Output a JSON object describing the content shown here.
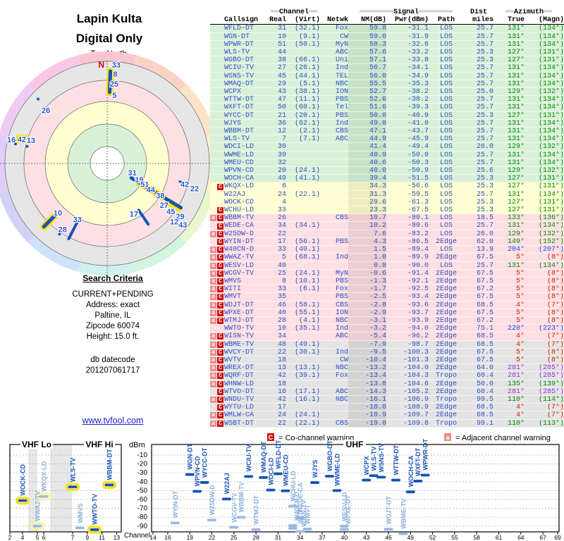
{
  "header": {
    "title_line1": "Lapin Kulta",
    "title_line2": "Digital Only",
    "north_label": "TrueNorth",
    "north_letter": "N"
  },
  "search_criteria": {
    "title": "Search Criteria",
    "lines": [
      "CURRENT+PENDING",
      "Address: exact",
      "Paltine, IL",
      "Zipcode 60074",
      "Height: 15.0 ft."
    ],
    "db_label": "db datecode",
    "db_value": "201207061717"
  },
  "link_text": "www.tvfool.com",
  "legend": {
    "co_letter": "C",
    "co_text": "= Co-channel warning",
    "adj_letter": "a",
    "adj_text": "= Adjacent channel warning"
  },
  "colors": {
    "table_text": "#2f4fc6",
    "marker_dark": "#1353b8",
    "marker_light": "#9cb9e4",
    "label_dark": "#1a52b8",
    "label_light": "#8aaede",
    "ring_yellow": "#ffe100",
    "co_badge": "#cc1111",
    "adj_badge": "#f08a8a",
    "band_green": "#d9f1d9",
    "band_yellow": "#ffffd2",
    "band_pink": "#fedfe3",
    "band_gray": "#e4e4e4",
    "az_green": "#008800",
    "az_red": "#cc2200",
    "az_purple": "#9933cc",
    "az_blue": "#2244dd"
  },
  "table": {
    "header1": {
      "channel": "Channel",
      "signal": "Signal",
      "dist": "Dist",
      "azimuth": "Azimuth",
      "eq2": "══",
      "eq8": "════════"
    },
    "header2": {
      "callsign": "Callsign",
      "real": "Real",
      "virt": "(Virt)",
      "netwk": "Netwk",
      "nm": "NM(dB)",
      "pwr": "Pwr(dBm)",
      "path": "Path",
      "miles": "miles",
      "true": "True",
      "magn": "(Magn)"
    },
    "rows": [
      [
        "WFLD-DT",
        "31",
        "(32.1)",
        "Fox",
        "59.8",
        "-31.1",
        "LOS",
        "25.7",
        "131°",
        "(134°)",
        "",
        "g",
        "g",
        0
      ],
      [
        "WGN-DT",
        "19",
        "(9.1)",
        "CW",
        "59.0",
        "-31.9",
        "LOS",
        "25.7",
        "131°",
        "(134°)",
        "",
        "g",
        "g",
        0
      ],
      [
        "WPWR-DT",
        "51",
        "(50.1)",
        "MyN",
        "58.3",
        "-32.6",
        "LOS",
        "25.7",
        "131°",
        "(134°)",
        "",
        "g",
        "g",
        0
      ],
      [
        "WLS-TV",
        "44",
        "",
        "ABC",
        "57.6",
        "-33.2",
        "LOS",
        "25.3",
        "127°",
        "(131°)",
        "",
        "g",
        "g",
        0
      ],
      [
        "WGBO-DT",
        "38",
        "(66.1)",
        "Uni",
        "57.1",
        "-33.8",
        "LOS",
        "25.3",
        "127°",
        "(131°)",
        "",
        "g",
        "g",
        0
      ],
      [
        "WCIU-TV",
        "27",
        "(26.1)",
        "Ind",
        "56.7",
        "-34.1",
        "LOS",
        "25.7",
        "131°",
        "(134°)",
        "",
        "g",
        "g",
        0
      ],
      [
        "WSNS-TV",
        "45",
        "(44.1)",
        "TEL",
        "56.0",
        "-34.9",
        "LOS",
        "25.7",
        "131°",
        "(134°)",
        "",
        "g",
        "g",
        0
      ],
      [
        "WMAQ-DT",
        "29",
        "(5.1)",
        "NBC",
        "55.5",
        "-35.3",
        "LOS",
        "25.7",
        "131°",
        "(134°)",
        "",
        "g",
        "g",
        0
      ],
      [
        "WCPX",
        "43",
        "(38.1)",
        "ION",
        "52.7",
        "-38.2",
        "LOS",
        "25.0",
        "129°",
        "(132°)",
        "",
        "g",
        "g",
        0
      ],
      [
        "WTTW-DT",
        "47",
        "(11.1)",
        "PBS",
        "52.6",
        "-38.2",
        "LOS",
        "25.7",
        "131°",
        "(134°)",
        "",
        "g",
        "g",
        0
      ],
      [
        "WXFT-DT",
        "50",
        "(60.1)",
        "Tel",
        "51.6",
        "-39.3",
        "LOS",
        "25.7",
        "131°",
        "(134°)",
        "",
        "g",
        "g",
        0
      ],
      [
        "WYCC-DT",
        "21",
        "(20.1)",
        "PBS",
        "50.0",
        "-40.9",
        "LOS",
        "25.3",
        "127°",
        "(131°)",
        "",
        "g",
        "g",
        0
      ],
      [
        "WJYS",
        "36",
        "(62.1)",
        "Ind",
        "49.8",
        "-41.0",
        "LOS",
        "25.7",
        "131°",
        "(134°)",
        "",
        "g",
        "g",
        0
      ],
      [
        "WBBM-DT",
        "12",
        "(2.1)",
        "CBS",
        "47.1",
        "-43.7",
        "LOS",
        "25.7",
        "131°",
        "(134°)",
        "",
        "g",
        "g",
        1
      ],
      [
        "WLS-TV",
        "7",
        "(7.1)",
        "ABC",
        "44.9",
        "-45.9",
        "LOS",
        "25.7",
        "131°",
        "(134°)",
        "",
        "g",
        "g",
        1
      ],
      [
        "WDCI-LD",
        "30",
        "",
        "",
        "41.4",
        "-49.4",
        "LOS",
        "26.0",
        "129°",
        "(132°)",
        "",
        "g",
        "g",
        0
      ],
      [
        "WWME-LD",
        "39",
        "",
        "",
        "40.9",
        "-50.0",
        "LOS",
        "25.7",
        "131°",
        "(134°)",
        "",
        "g",
        "g",
        0
      ],
      [
        "WMEU-CD",
        "32",
        "",
        "",
        "40.6",
        "-50.3",
        "LOS",
        "25.7",
        "131°",
        "(134°)",
        "",
        "g",
        "g",
        0
      ],
      [
        "WPVN-CD",
        "20",
        "(24.1)",
        "",
        "40.0",
        "-50.9",
        "LOS",
        "25.6",
        "129°",
        "(132°)",
        "",
        "g",
        "g",
        0
      ],
      [
        "WOCH-CA",
        "49",
        "(41.1)",
        "",
        "39.4",
        "-51.5",
        "LOS",
        "25.3",
        "127°",
        "(131°)",
        "",
        "g",
        "g",
        0
      ],
      [
        "WKQX-LD",
        "6",
        "",
        "",
        "34.3",
        "-56.6",
        "LOS",
        "25.3",
        "127°",
        "(131°)",
        "C",
        "y",
        "g",
        1
      ],
      [
        "W22AJ",
        "24",
        "(22.1)",
        "",
        "31.3",
        "-59.5",
        "LOS",
        "25.7",
        "131°",
        "(134°)",
        "",
        "y",
        "g",
        0
      ],
      [
        "WOCK-CD",
        "4",
        "",
        "",
        "29.6",
        "-61.3",
        "LOS",
        "25.3",
        "127°",
        "(131°)",
        "",
        "y",
        "g",
        1
      ],
      [
        "WCHU-LD",
        "33",
        "",
        "",
        "23.3",
        "-67.5",
        "LOS",
        "25.3",
        "127°",
        "(131°)",
        "C",
        "y",
        "g",
        0
      ],
      [
        "WBBM-TV",
        "26",
        "",
        "CBS",
        "10.7",
        "-80.1",
        "LOS",
        "18.5",
        "133°",
        "(136°)",
        "aC",
        "p",
        "g",
        0
      ],
      [
        "WEDE-CA",
        "34",
        "(34.1)",
        "",
        "10.2",
        "-80.6",
        "LOS",
        "25.7",
        "131°",
        "(134°)",
        "C",
        "p",
        "g",
        0
      ],
      [
        "W25DW-D",
        "22",
        "",
        "",
        "7.6",
        "-83.2",
        "LOS",
        "26.0",
        "129°",
        "(132°)",
        "aC",
        "p",
        "g",
        0
      ],
      [
        "WYIN-DT",
        "17",
        "(56.1)",
        "PBS",
        "4.3",
        "-86.5",
        "2Edge",
        "62.0",
        "149°",
        "(152°)",
        "C",
        "p",
        "g",
        0
      ],
      [
        "W40CN-D",
        "33",
        "(40.1)",
        "",
        "1.5",
        "-89.4",
        "LOS",
        "13.9",
        "204°",
        "(207°)",
        "aC",
        "p",
        "b",
        0
      ],
      [
        "WWAZ-TV",
        "5",
        "(68.1)",
        "Ind",
        "1.0",
        "-89.9",
        "2Edge",
        "67.5",
        "5°",
        "(8°)",
        "aC",
        "p",
        "r",
        1
      ],
      [
        "WESV-LD",
        "40",
        "",
        "",
        "0.8",
        "-90.0",
        "LOS",
        "25.7",
        "131°",
        "(134°)",
        "aC",
        "p",
        "g",
        0
      ],
      [
        "WCGV-TV",
        "25",
        "(24.1)",
        "MyN",
        "-0.6",
        "-91.4",
        "2Edge",
        "67.5",
        "5°",
        "(8°)",
        "aC",
        "p",
        "r",
        0
      ],
      [
        "WMVS",
        "8",
        "(10.1)",
        "PBS",
        "-1.3",
        "-92.1",
        "2Edge",
        "67.5",
        "5°",
        "(8°)",
        "aC",
        "p",
        "r",
        0
      ],
      [
        "WITI",
        "33",
        "(6.1)",
        "Fox",
        "-1.7",
        "-92.5",
        "2Edge",
        "67.2",
        "5°",
        "(8°)",
        "aC",
        "p",
        "r",
        0
      ],
      [
        "WMVT",
        "35",
        "",
        "PBS",
        "-2.5",
        "-93.4",
        "2Edge",
        "67.5",
        "5°",
        "(8°)",
        "aC",
        "p",
        "r",
        0
      ],
      [
        "WDJT-DT",
        "46",
        "(58.1)",
        "CBS",
        "-2.8",
        "-93.6",
        "2Edge",
        "68.5",
        "4°",
        "(7°)",
        "aC",
        "p",
        "r",
        0
      ],
      [
        "WPXE-DT",
        "40",
        "(55.1)",
        "ION",
        "-2.9",
        "-93.7",
        "2Edge",
        "67.5",
        "5°",
        "(8°)",
        "aC",
        "p",
        "r",
        0
      ],
      [
        "WTMJ-DT",
        "28",
        "(4.1)",
        "NBC",
        "-3.1",
        "-93.9",
        "2Edge",
        "67.2",
        "5°",
        "(8°)",
        "aC",
        "p",
        "r",
        0
      ],
      [
        "WWTO-TV",
        "10",
        "(35.1)",
        "Ind",
        "-3.2",
        "-94.0",
        "2Edge",
        "75.1",
        "220°",
        "(223°)",
        "",
        "p",
        "b",
        1
      ],
      [
        "WISN-TV",
        "34",
        "",
        "ABC",
        "-5.4",
        "-96.2",
        "2Edge",
        "68.5",
        "4°",
        "(7°)",
        "aC",
        "p",
        "r",
        0
      ],
      [
        "WBME-TV",
        "48",
        "(49.1)",
        "",
        "-7.9",
        "-98.7",
        "2Edge",
        "68.5",
        "4°",
        "(7°)",
        "aC",
        "gr",
        "r",
        0
      ],
      [
        "WVCY-DT",
        "22",
        "(30.1)",
        "Ind",
        "-9.5",
        "-100.3",
        "2Edge",
        "67.5",
        "5°",
        "(8°)",
        "aC",
        "gr",
        "r",
        0
      ],
      [
        "WVTV",
        "18",
        "",
        "CW",
        "-10.4",
        "-101.3",
        "2Edge",
        "67.5",
        "5°",
        "(8°)",
        "aC",
        "gr",
        "r",
        0
      ],
      [
        "WREX-DT",
        "13",
        "(13.1)",
        "NBC",
        "-13.2",
        "-104.0",
        "2Edge",
        "64.0",
        "281°",
        "(285°)",
        "aC",
        "gr",
        "pu",
        0
      ],
      [
        "WQRF-DT",
        "42",
        "(39.1)",
        "Fox",
        "-13.4",
        "-104.3",
        "Tropo",
        "60.4",
        "281°",
        "(285°)",
        "aC",
        "gr",
        "pu",
        0
      ],
      [
        "WHNW-LD",
        "18",
        "",
        "",
        "-13.8",
        "-104.6",
        "2Edge",
        "50.0",
        "135°",
        "(139°)",
        "aC",
        "gr",
        "g",
        0
      ],
      [
        "WTVO-DT",
        "16",
        "(17.1)",
        "ABC",
        "-14.3",
        "-105.2",
        "2Edge",
        "60.4",
        "281°",
        "(285°)",
        "C",
        "gr",
        "pu",
        0
      ],
      [
        "WNDU-TV",
        "42",
        "(16.1)",
        "NBC",
        "-16.1",
        "-106.9",
        "Tropo",
        "99.5",
        "110°",
        "(114°)",
        "aC",
        "gr",
        "g",
        0
      ],
      [
        "WYTU-LD",
        "17",
        "",
        "",
        "-18.0",
        "-108.9",
        "2Edge",
        "68.5",
        "4°",
        "(7°)",
        "C",
        "gr",
        "r",
        0
      ],
      [
        "WMLW-CA",
        "24",
        "(24.1)",
        "",
        "-18.9",
        "-109.7",
        "2Edge",
        "68.5",
        "4°",
        "(7°)",
        "aC",
        "gr",
        "r",
        0
      ],
      [
        "WSBT-DT",
        "22",
        "(22.1)",
        "CBS",
        "-19.0",
        "-109.8",
        "Tropo",
        "99.1",
        "110°",
        "(113°)",
        "aC",
        "gr",
        "g",
        0
      ]
    ]
  },
  "chart_data": [
    {
      "type": "radar-polar",
      "title": "station azimuth / strength polar plot",
      "center": [
        152,
        232
      ],
      "band_radii": [
        24,
        56,
        88,
        118,
        145
      ],
      "band_colors": [
        "#ffffff",
        "#d9f1d9",
        "#ffffd2",
        "#fde0e4",
        "#e6e6e6"
      ],
      "wedge_outer_r": 159,
      "wedge_colors": [
        "#f9c6d0",
        "#fbd2c6",
        "#fde3c8",
        "#fcf3ca",
        "#e9f7cf",
        "#d3f5dd",
        "#cef2ef",
        "#cfe3f8",
        "#d2d2f9",
        "#e2cdf8",
        "#f0ccf5",
        "#f8c9e6"
      ],
      "segments": [
        {
          "az": 2,
          "r1": 101,
          "r2": 131,
          "w": 5,
          "ring": 1
        },
        {
          "az": 121,
          "r1": 40,
          "r2": 122,
          "w": 5,
          "ring": 0
        },
        {
          "az": 121,
          "r1": 52,
          "r2": 92,
          "w": 0,
          "ringOnly": 1
        },
        {
          "az": 122,
          "r1": 102,
          "r2": 120,
          "w": 0,
          "ringOnly": 1
        },
        {
          "az": 146,
          "r1": 80,
          "r2": 104,
          "w": 4,
          "ring": 0
        },
        {
          "az": 207,
          "r1": 93,
          "r2": 120,
          "w": 4,
          "ring": 0
        },
        {
          "az": 225,
          "r1": 106,
          "r2": 127,
          "w": 5,
          "ring": 1
        },
        {
          "az": 104,
          "r1": 106,
          "r2": 112,
          "w": 3,
          "ring": 0
        },
        {
          "az": 106,
          "r1": 120,
          "r2": 126,
          "w": 3,
          "ring": 0
        }
      ],
      "dots": [
        {
          "az": 313,
          "r": 134
        },
        {
          "az": 214,
          "r": 121
        },
        {
          "az": 282,
          "r": 133
        },
        {
          "az": 282,
          "r": 116
        }
      ],
      "labels": [
        {
          "t": "33",
          "az": 2,
          "r": 140,
          "dx": 8
        },
        {
          "t": "8",
          "az": 2,
          "r": 127,
          "dx": 7
        },
        {
          "t": "25",
          "az": 1,
          "r": 113,
          "dx": 8
        },
        {
          "t": "5",
          "az": 2,
          "r": 97,
          "dx": 7
        },
        {
          "t": "26",
          "az": 312,
          "r": 125,
          "dx": 6,
          "dy": 8
        },
        {
          "t": "16",
          "az": 284,
          "r": 140
        },
        {
          "t": "42",
          "az": 286,
          "r": 126,
          "ring": 1
        },
        {
          "t": "13",
          "az": 287,
          "r": 113
        },
        {
          "t": "31",
          "az": 110,
          "r": 38
        },
        {
          "t": "19",
          "az": 117,
          "r": 51
        },
        {
          "t": "51",
          "az": 119,
          "r": 61
        },
        {
          "t": "44",
          "az": 121,
          "r": 72
        },
        {
          "t": "38",
          "az": 121,
          "r": 88
        },
        {
          "t": "27",
          "az": 126,
          "r": 100
        },
        {
          "t": "45",
          "az": 127,
          "r": 113
        },
        {
          "t": "29",
          "az": 126,
          "r": 128
        },
        {
          "t": "12",
          "az": 131,
          "r": 126
        },
        {
          "t": "43",
          "az": 129,
          "r": 138
        },
        {
          "t": "42",
          "az": 105,
          "r": 114
        },
        {
          "t": "22",
          "az": 106,
          "r": 129
        },
        {
          "t": "17",
          "az": 152,
          "r": 81
        },
        {
          "t": "10",
          "az": 225,
          "r": 99
        },
        {
          "t": "33",
          "az": 208,
          "r": 90
        },
        {
          "t": "28",
          "az": 214,
          "r": 113
        }
      ]
    },
    {
      "type": "scatter",
      "title": "signal power vs channel",
      "ylabel": "dBm",
      "xlabel": "Channel",
      "y_ticks": [
        -10,
        -20,
        -30,
        -40,
        -50,
        -60,
        -70,
        -80,
        -90
      ],
      "sections": {
        "vhf_lo": "VHF Lo",
        "vhf_hi": "VHF Hi",
        "uhf": "UHF"
      },
      "vhf_ticks": [
        2,
        4,
        5,
        6,
        7,
        9,
        11,
        13
      ],
      "uhf_ticks": [
        14,
        16,
        19,
        22,
        25,
        28,
        31,
        34,
        37,
        40,
        43,
        46,
        49,
        52,
        55,
        58,
        61,
        64,
        67,
        69
      ],
      "visible_min_dbm": -99,
      "points_note": "points derived from table.rows: [callsign, real channel, Pwr(dBm)], light style when row has warning, yellow ring when row ring flag set"
    }
  ]
}
